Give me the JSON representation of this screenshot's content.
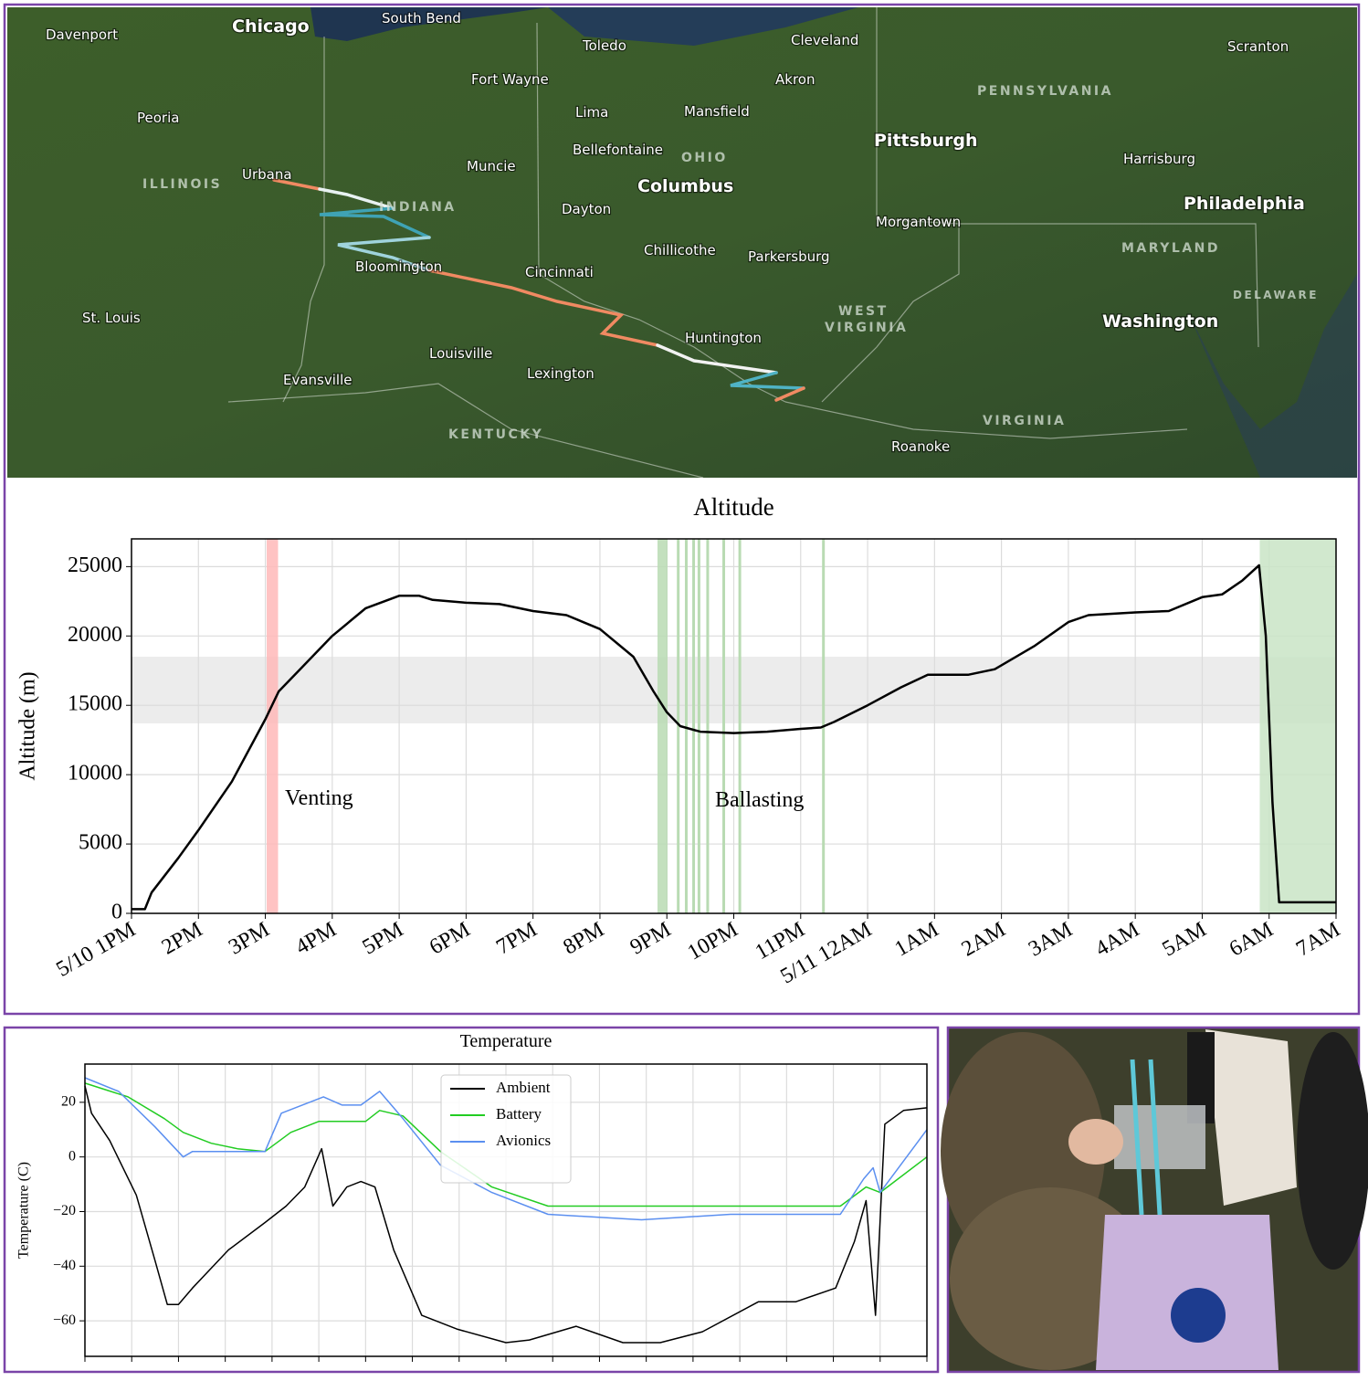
{
  "map": {
    "labels": [
      "Davenport",
      "Chicago",
      "South Bend",
      "Toledo",
      "Cleveland",
      "Scranton",
      "Fort Wayne",
      "Akron",
      "PENNSYLVANIA",
      "Peoria",
      "Lima",
      "Mansfield",
      "Pittsburgh",
      "Bellefontaine",
      "OHIO",
      "Harrisburg",
      "ILLINOIS",
      "Urbana",
      "Muncie",
      "INDIANA",
      "Columbus",
      "Dayton",
      "Philadelphia",
      "Morgantown",
      "Chillicothe",
      "Parkersburg",
      "MARYLAND",
      "Bloomington",
      "Cincinnati",
      "DELAWARE",
      "St. Louis",
      "WEST",
      "VIRGINIA",
      "Washington",
      "Huntington",
      "Louisville",
      "Lexington",
      "Evansville",
      "VIRGINIA",
      "KENTUCKY",
      "Roanoke"
    ]
  },
  "chart_data": [
    {
      "type": "line",
      "title": "Altitude",
      "ylabel": "Altitude (m)",
      "color": "#000000",
      "x": [
        0,
        0.2,
        0.3,
        0.7,
        1,
        1.5,
        2,
        2.2,
        2.5,
        3,
        3.5,
        4,
        4.3,
        4.5,
        5,
        5.5,
        6,
        6.5,
        7,
        7.5,
        7.8,
        8,
        8.2,
        8.5,
        9,
        9.5,
        10,
        10.3,
        10.5,
        11,
        11.5,
        11.9,
        12.5,
        12.9,
        13.5,
        14,
        14.3,
        15,
        15.5,
        16,
        16.3,
        16.6,
        16.85,
        16.95,
        17.05,
        17.15,
        18
      ],
      "values": [
        300,
        300,
        1500,
        4000,
        6000,
        9500,
        14000,
        16000,
        17500,
        20000,
        22000,
        22900,
        22900,
        22600,
        22400,
        22300,
        21800,
        21500,
        20500,
        18500,
        16000,
        14500,
        13500,
        13100,
        13000,
        13100,
        13300,
        13400,
        13800,
        15000,
        16300,
        17200,
        17200,
        17600,
        19300,
        21000,
        21500,
        21700,
        21800,
        22800,
        23000,
        24000,
        25100,
        20000,
        8000,
        800,
        800
      ],
      "xlim": [
        0,
        18
      ],
      "xticks": [
        {
          "value": 0,
          "label": "5/10 1PM"
        },
        {
          "value": 1,
          "label": "2PM"
        },
        {
          "value": 2,
          "label": "3PM"
        },
        {
          "value": 3,
          "label": "4PM"
        },
        {
          "value": 4,
          "label": "5PM"
        },
        {
          "value": 5,
          "label": "6PM"
        },
        {
          "value": 6,
          "label": "7PM"
        },
        {
          "value": 7,
          "label": "8PM"
        },
        {
          "value": 8,
          "label": "9PM"
        },
        {
          "value": 9,
          "label": "10PM"
        },
        {
          "value": 10,
          "label": "11PM"
        },
        {
          "value": 11,
          "label": "5/11 12AM"
        },
        {
          "value": 12,
          "label": "1AM"
        },
        {
          "value": 13,
          "label": "2AM"
        },
        {
          "value": 14,
          "label": "3AM"
        },
        {
          "value": 15,
          "label": "4AM"
        },
        {
          "value": 16,
          "label": "5AM"
        },
        {
          "value": 17,
          "label": "6AM"
        },
        {
          "value": 18,
          "label": "7AM"
        }
      ],
      "ylim": [
        0,
        27000
      ],
      "yticks": [
        0,
        5000,
        10000,
        15000,
        20000,
        25000
      ],
      "grid": true,
      "hspans": [
        {
          "y": [
            13700,
            18500
          ],
          "color": "#ececec"
        }
      ],
      "vspans": [
        {
          "x": [
            2.02,
            2.19
          ],
          "color": "#ffb8b8"
        },
        {
          "x": [
            7.86,
            8.01
          ],
          "color": "#b9dbb3"
        },
        {
          "x": [
            16.86,
            18
          ],
          "color": "#c9e4c5"
        }
      ],
      "vlines": {
        "x": [
          8.17,
          8.29,
          8.4,
          8.48,
          8.61,
          8.85,
          9.09,
          10.34
        ],
        "color": "#b9dbb3"
      },
      "annotations": [
        "Venting",
        "Ballasting"
      ]
    },
    {
      "type": "line",
      "title": "Temperature",
      "ylabel": "Temperature (C)",
      "legend": "upper center",
      "xlim": [
        0,
        18
      ],
      "xticks": [
        0,
        1,
        2,
        3,
        4,
        5,
        6,
        7,
        8,
        9,
        10,
        11,
        12,
        13,
        14,
        15,
        16,
        17,
        18
      ],
      "xtick_labels": false,
      "ylim": [
        -73,
        34
      ],
      "yticks": [
        {
          "value": -60,
          "label": "−60"
        },
        {
          "value": -40,
          "label": "−40"
        },
        {
          "value": -20,
          "label": "−20"
        },
        0,
        20
      ],
      "grid": true,
      "series": [
        {
          "name": "Ambient",
          "color": "#000000",
          "x": [
            0,
            0.14,
            0.53,
            1.1,
            1.5,
            1.76,
            2.0,
            2.3,
            3.07,
            3.85,
            4.3,
            4.7,
            5.06,
            5.3,
            5.6,
            5.9,
            6.2,
            6.6,
            7.2,
            7.95,
            9.0,
            9.5,
            10.5,
            11.5,
            12.3,
            13.2,
            14.4,
            15.2,
            16.05,
            16.45,
            16.7,
            16.9,
            17.1,
            17.5,
            18
          ],
          "values": [
            26,
            16,
            6,
            -14,
            -38,
            -54,
            -54,
            -48,
            -34,
            -24,
            -18,
            -11,
            3,
            -18,
            -11,
            -9,
            -11,
            -34,
            -58,
            -63,
            -68,
            -67,
            -62,
            -68,
            -68,
            -64,
            -53,
            -53,
            -48,
            -31,
            -16,
            -58,
            12,
            17,
            18
          ]
        },
        {
          "name": "Battery",
          "color": "#22cc22",
          "x": [
            0,
            0.92,
            1.7,
            2.1,
            2.7,
            3.26,
            3.85,
            4.4,
            5.0,
            6.0,
            6.3,
            6.8,
            7.6,
            8.7,
            9.9,
            11.9,
            16.15,
            16.7,
            17.0,
            18
          ],
          "values": [
            27,
            22,
            14,
            9,
            5,
            3,
            2,
            9,
            13,
            13,
            17,
            15,
            2,
            -11,
            -18,
            -18,
            -18,
            -11,
            -13,
            0
          ]
        },
        {
          "name": "Avionics",
          "color": "#5b8ff0",
          "x": [
            0,
            0.72,
            1.5,
            2.1,
            2.3,
            3.85,
            4.2,
            5.1,
            5.5,
            5.9,
            6.3,
            6.8,
            7.6,
            8.7,
            9.9,
            11.9,
            13.8,
            16.15,
            16.65,
            16.85,
            17.0,
            18
          ],
          "values": [
            29,
            24,
            11,
            0,
            2,
            2,
            16,
            22,
            19,
            19,
            24,
            14,
            -3,
            -13,
            -21,
            -23,
            -21,
            -21,
            -8,
            -4,
            -13,
            10
          ]
        }
      ]
    }
  ]
}
